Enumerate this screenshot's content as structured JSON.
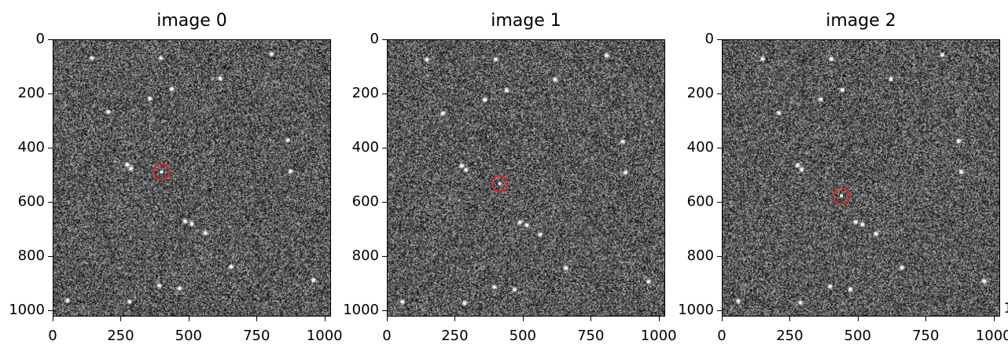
{
  "figure": {
    "panels": [
      {
        "title": "image 0",
        "marker_x": 400,
        "marker_y": 490,
        "seed": 11
      },
      {
        "title": "image 1",
        "marker_x": 415,
        "marker_y": 533,
        "seed": 23
      },
      {
        "title": "image 2",
        "marker_x": 440,
        "marker_y": 578,
        "seed": 37
      }
    ],
    "y_ticks": [
      "0",
      "200",
      "400",
      "600",
      "800",
      "1000"
    ],
    "x_ticks": [
      "0",
      "250",
      "500",
      "750",
      "1000"
    ],
    "edge_glyph": "1",
    "marker_color": "#d62728",
    "stars": [
      [
        145,
        70
      ],
      [
        400,
        70
      ],
      [
        440,
        185
      ],
      [
        620,
        145
      ],
      [
        810,
        55
      ],
      [
        360,
        220
      ],
      [
        205,
        270
      ],
      [
        275,
        465
      ],
      [
        290,
        480
      ],
      [
        880,
        490
      ],
      [
        870,
        375
      ],
      [
        395,
        915
      ],
      [
        490,
        675
      ],
      [
        515,
        685
      ],
      [
        565,
        720
      ],
      [
        660,
        845
      ],
      [
        965,
        895
      ],
      [
        470,
        925
      ],
      [
        55,
        970
      ],
      [
        285,
        975
      ]
    ]
  }
}
